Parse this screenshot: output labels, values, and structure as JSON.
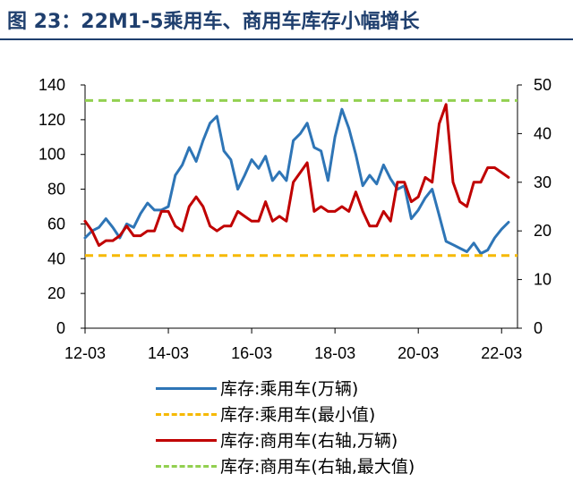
{
  "title": "图 23：22M1-5乘用车、商用车库存小幅增长",
  "chart_data": {
    "type": "line",
    "x_labels": [
      "12-03",
      "14-03",
      "16-03",
      "18-03",
      "20-03",
      "22-03"
    ],
    "y_left": {
      "range": [
        0,
        140
      ],
      "ticks": [
        0,
        20,
        40,
        60,
        80,
        100,
        120,
        140
      ]
    },
    "y_right": {
      "range": [
        0,
        50
      ],
      "ticks": [
        0,
        10,
        20,
        30,
        40,
        50
      ]
    },
    "legend_position": "bottom",
    "series": [
      {
        "name": "库存:乘用车(万辆)",
        "axis": "left",
        "color": "#2e75b6",
        "style": "solid",
        "x": [
          "2012-03",
          "2012-05",
          "2012-07",
          "2012-09",
          "2012-11",
          "2013-01",
          "2013-03",
          "2013-05",
          "2013-07",
          "2013-09",
          "2013-11",
          "2014-01",
          "2014-03",
          "2014-05",
          "2014-07",
          "2014-09",
          "2014-11",
          "2015-01",
          "2015-03",
          "2015-05",
          "2015-07",
          "2015-09",
          "2015-11",
          "2016-01",
          "2016-03",
          "2016-05",
          "2016-07",
          "2016-09",
          "2016-11",
          "2017-01",
          "2017-03",
          "2017-05",
          "2017-07",
          "2017-09",
          "2017-11",
          "2018-01",
          "2018-03",
          "2018-05",
          "2018-07",
          "2018-09",
          "2018-11",
          "2019-01",
          "2019-03",
          "2019-05",
          "2019-07",
          "2019-09",
          "2019-11",
          "2020-01",
          "2020-03",
          "2020-05",
          "2020-07",
          "2020-09",
          "2020-11",
          "2021-01",
          "2021-03",
          "2021-05",
          "2021-07",
          "2021-09",
          "2021-11",
          "2022-01",
          "2022-03",
          "2022-05"
        ],
        "values": [
          52,
          56,
          58,
          63,
          58,
          52,
          60,
          58,
          66,
          72,
          68,
          68,
          70,
          88,
          94,
          104,
          96,
          108,
          118,
          122,
          102,
          97,
          80,
          88,
          97,
          92,
          99,
          85,
          90,
          85,
          108,
          112,
          118,
          104,
          102,
          85,
          110,
          126,
          115,
          100,
          82,
          88,
          83,
          94,
          86,
          80,
          82,
          63,
          68,
          75,
          80,
          65,
          50,
          48,
          46,
          44,
          49,
          43,
          45,
          52,
          57,
          61
        ]
      },
      {
        "name": "库存:乘用车(最小值)",
        "axis": "left",
        "color": "#f6b900",
        "style": "dashed",
        "values": [
          41.8
        ]
      },
      {
        "name": "库存:商用车(右轴,万辆)",
        "axis": "right",
        "color": "#c00000",
        "style": "solid",
        "x": [
          "2012-03",
          "2012-05",
          "2012-07",
          "2012-09",
          "2012-11",
          "2013-01",
          "2013-03",
          "2013-05",
          "2013-07",
          "2013-09",
          "2013-11",
          "2014-01",
          "2014-03",
          "2014-05",
          "2014-07",
          "2014-09",
          "2014-11",
          "2015-01",
          "2015-03",
          "2015-05",
          "2015-07",
          "2015-09",
          "2015-11",
          "2016-01",
          "2016-03",
          "2016-05",
          "2016-07",
          "2016-09",
          "2016-11",
          "2017-01",
          "2017-03",
          "2017-05",
          "2017-07",
          "2017-09",
          "2017-11",
          "2018-01",
          "2018-03",
          "2018-05",
          "2018-07",
          "2018-09",
          "2018-11",
          "2019-01",
          "2019-03",
          "2019-05",
          "2019-07",
          "2019-09",
          "2019-11",
          "2020-01",
          "2020-03",
          "2020-05",
          "2020-07",
          "2020-09",
          "2020-11",
          "2021-01",
          "2021-03",
          "2021-05",
          "2021-07",
          "2021-09",
          "2021-11",
          "2022-01",
          "2022-03",
          "2022-05"
        ],
        "values": [
          22,
          20,
          17,
          18,
          18,
          19,
          21,
          19,
          19,
          20,
          20,
          24,
          24,
          21,
          20,
          25,
          27,
          25,
          21,
          20,
          21,
          21,
          24,
          23,
          22,
          22,
          26,
          22,
          23,
          22,
          30,
          32,
          34,
          24,
          25,
          24,
          24,
          25,
          24,
          28,
          24,
          21,
          21,
          24,
          22,
          30,
          30,
          26,
          27,
          31,
          30,
          42,
          46,
          30,
          26,
          25,
          30,
          30,
          33,
          33,
          32,
          31
        ]
      },
      {
        "name": "库存:商用车(右轴,最大值)",
        "axis": "right",
        "color": "#92d050",
        "style": "dashed",
        "values": [
          46.8
        ]
      }
    ]
  }
}
